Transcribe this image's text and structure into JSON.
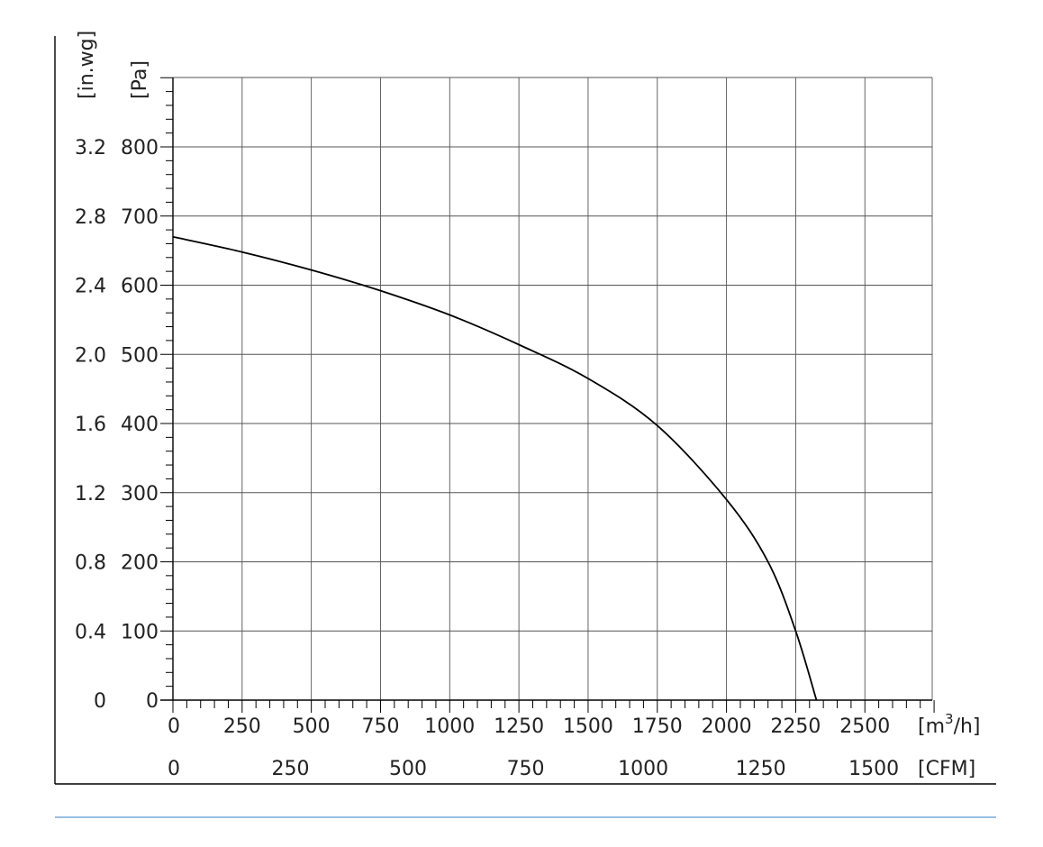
{
  "chart_data": {
    "type": "line",
    "xlabel_primary": "[m³/h]",
    "xlabel_primary_base": "[m",
    "xlabel_primary_sup": "3",
    "xlabel_primary_tail": "/h]",
    "xlabel_secondary": "[CFM]",
    "ylabel_primary": "[Pa]",
    "ylabel_secondary": "[in.wg]",
    "xlim": [
      0,
      2750
    ],
    "ylim": [
      0,
      900
    ],
    "x_ticks_m3h": [
      "0",
      "250",
      "500",
      "750",
      "1000",
      "1250",
      "1500",
      "1750",
      "2000",
      "2250",
      "2500"
    ],
    "x_ticks_cfm": [
      {
        "label": "0",
        "value": 0
      },
      {
        "label": "250",
        "value": 250
      },
      {
        "label": "500",
        "value": 500
      },
      {
        "label": "750",
        "value": 750
      },
      {
        "label": "1000",
        "value": 1000
      },
      {
        "label": "1250",
        "value": 1250
      },
      {
        "label": "1500",
        "value": 1500
      }
    ],
    "y_ticks_pa": [
      "0",
      "100",
      "200",
      "300",
      "400",
      "500",
      "600",
      "700",
      "800"
    ],
    "y_ticks_inwg": [
      "0",
      "0.4",
      "0.8",
      "1.2",
      "1.6",
      "2.0",
      "2.4",
      "2.8",
      "3.2"
    ],
    "grid": true,
    "series": [
      {
        "color": "#000000",
        "x": [
          0,
          250,
          500,
          750,
          1000,
          1250,
          1500,
          1750,
          2000,
          2150,
          2250,
          2325
        ],
        "y": [
          670,
          648,
          622,
          592,
          557,
          514,
          465,
          397,
          290,
          200,
          100,
          0
        ]
      }
    ],
    "colors": {
      "axis": "#000000",
      "grid": "#555555",
      "curve": "#000000",
      "footer_rule": "#5b9bd5"
    }
  }
}
